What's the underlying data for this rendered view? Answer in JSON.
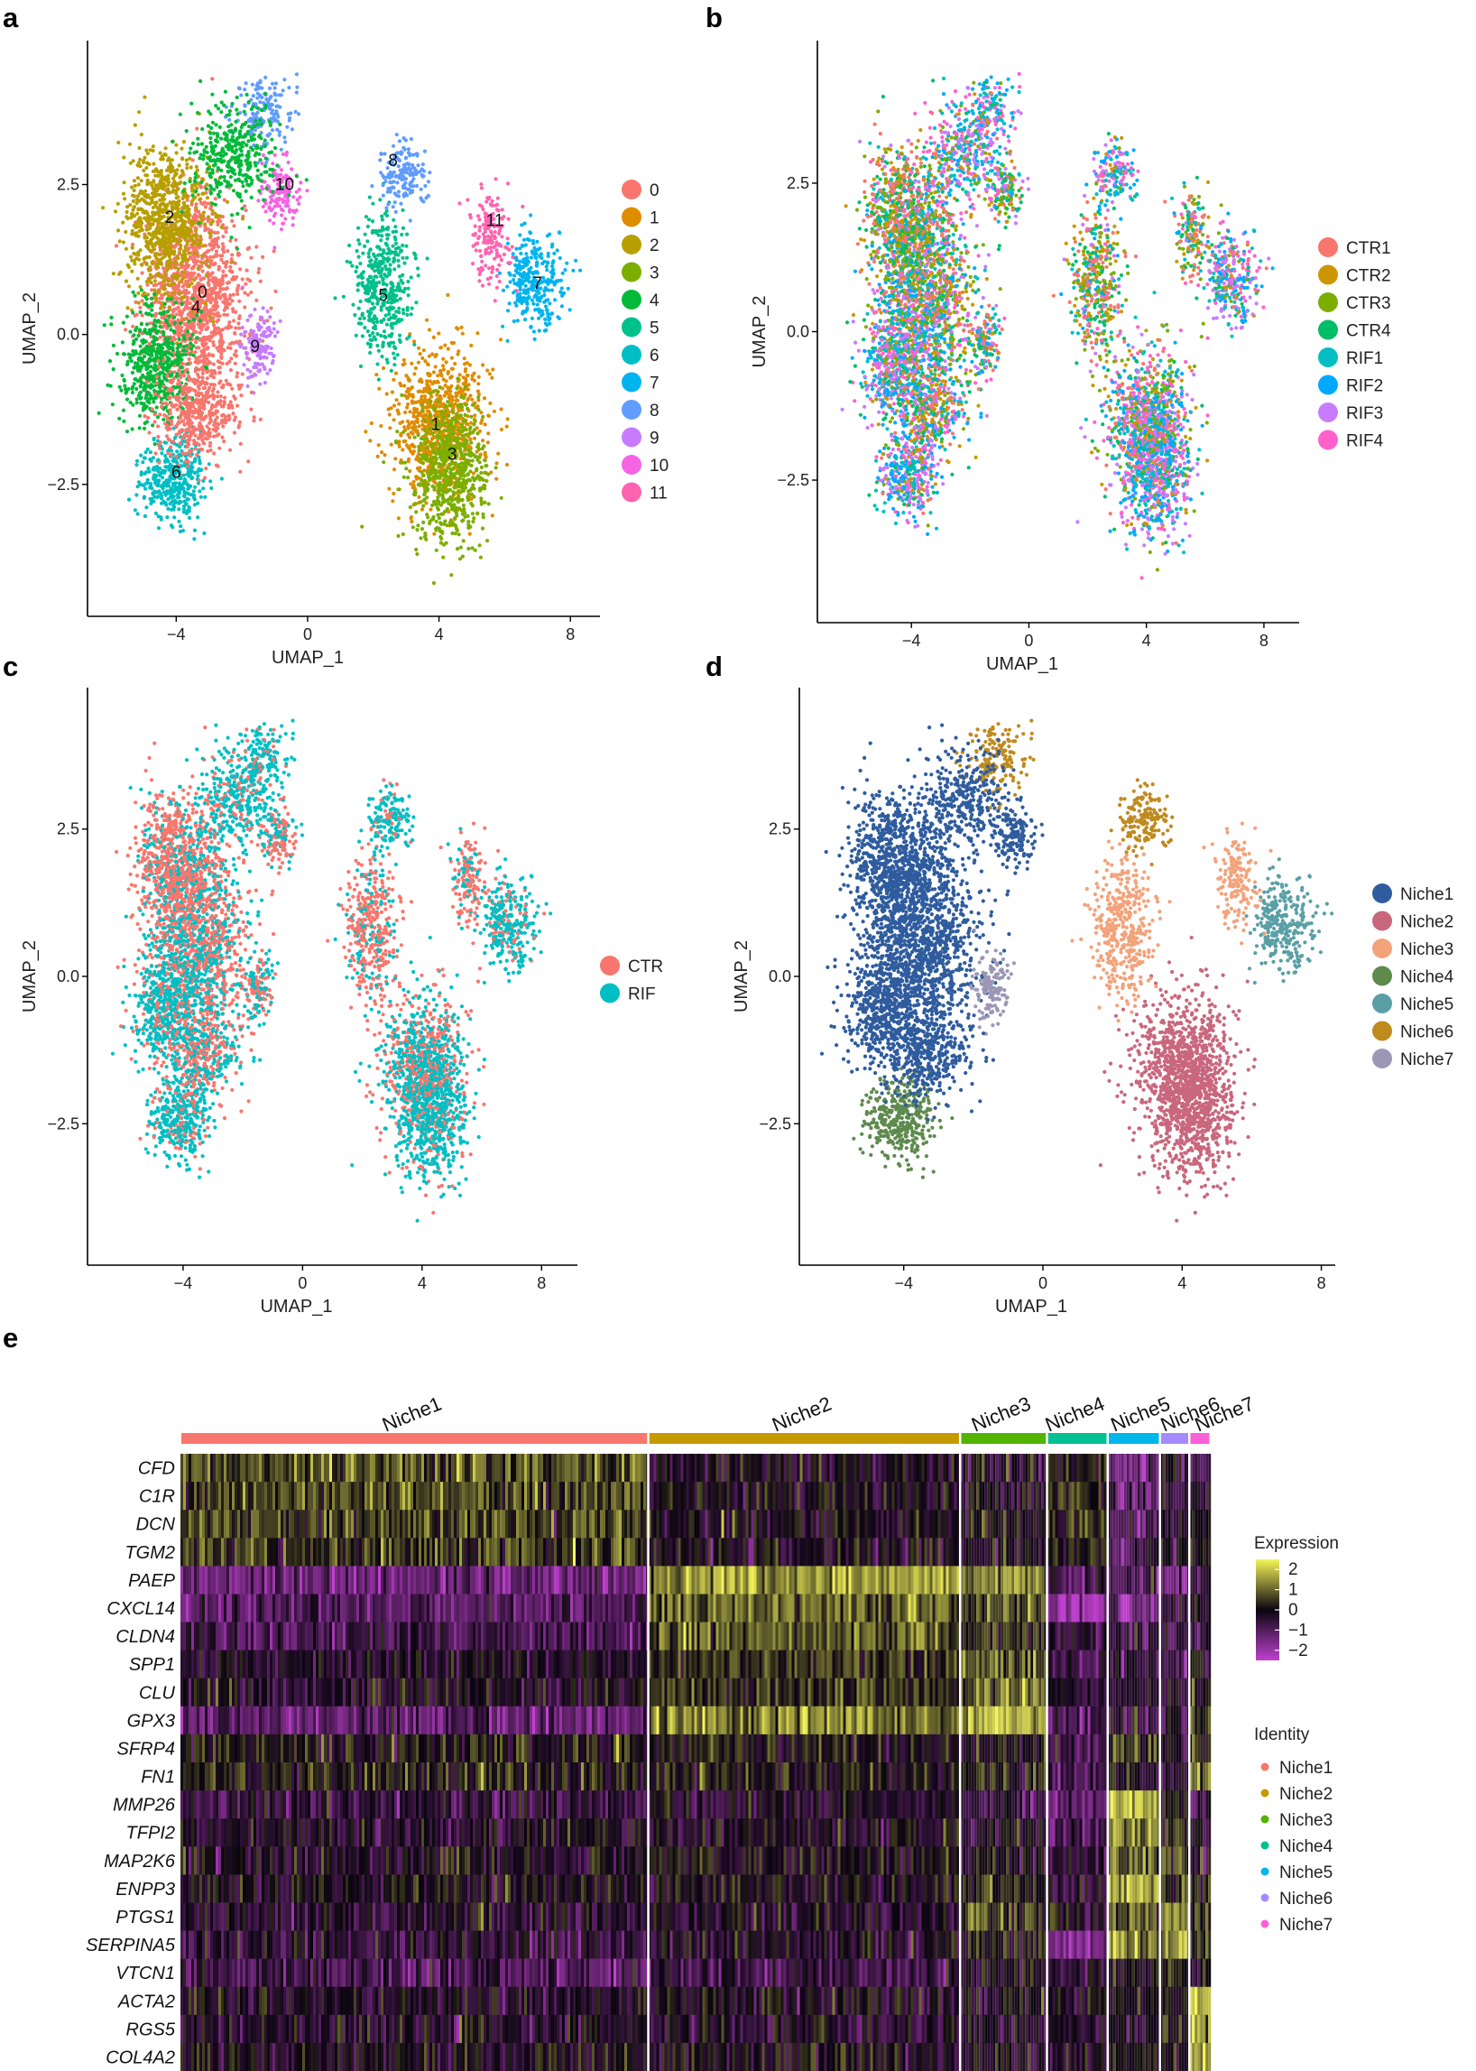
{
  "figure": {
    "panel_labels": [
      "a",
      "b",
      "c",
      "d",
      "e"
    ],
    "palettes": {
      "clusters": [
        "#F8766D",
        "#DE8C00",
        "#B79F00",
        "#7CAE00",
        "#00BA38",
        "#00C08B",
        "#00BFC4",
        "#00B4F0",
        "#619CFF",
        "#C77CFF",
        "#F564E3",
        "#FF64B0"
      ],
      "samples": [
        "#F8766D",
        "#CD9600",
        "#7CAE00",
        "#00BE67",
        "#00BFC4",
        "#00A9FF",
        "#C77CFF",
        "#FF61CC"
      ],
      "groups": [
        "#F8766D",
        "#00BFC4"
      ],
      "niches": [
        "#2F5C9E",
        "#C9677D",
        "#F3A27A",
        "#5E8A4E",
        "#5A9FA6",
        "#BF8A1E",
        "#9C97B6"
      ],
      "identity": [
        "#F8766D",
        "#C49A00",
        "#53B400",
        "#00C094",
        "#00B6EB",
        "#A58AFF",
        "#FB61D7"
      ]
    }
  },
  "chart_data": [
    {
      "type": "scatter",
      "panel": "a",
      "xlabel": "UMAP_1",
      "ylabel": "UMAP_2",
      "x_ticks": [
        -4,
        0,
        4,
        8
      ],
      "x_tick_labels": [
        "−4",
        "0",
        "4",
        "8"
      ],
      "y_ticks": [
        -2.5,
        0,
        2.5
      ],
      "y_tick_labels": [
        "−2.5",
        "0.0",
        "2.5"
      ],
      "xlim": [
        -6.7,
        8.9
      ],
      "ylim": [
        -4.7,
        4.9
      ],
      "legend": [
        "0",
        "1",
        "2",
        "3",
        "4",
        "5",
        "6",
        "7",
        "8",
        "9",
        "10",
        "11"
      ],
      "cluster_labels": [
        {
          "text": "0",
          "x": -3.2,
          "y": 0.7
        },
        {
          "text": "4",
          "x": -3.4,
          "y": 0.45
        },
        {
          "text": "2",
          "x": -4.2,
          "y": 1.95
        },
        {
          "text": "10",
          "x": -0.7,
          "y": 2.5
        },
        {
          "text": "8",
          "x": 2.6,
          "y": 2.9
        },
        {
          "text": "11",
          "x": 5.7,
          "y": 1.9
        },
        {
          "text": "7",
          "x": 7.0,
          "y": 0.85
        },
        {
          "text": "5",
          "x": 2.3,
          "y": 0.65
        },
        {
          "text": "9",
          "x": -1.6,
          "y": -0.2
        },
        {
          "text": "1",
          "x": 3.9,
          "y": -1.5
        },
        {
          "text": "3",
          "x": 4.4,
          "y": -2.0
        },
        {
          "text": "6",
          "x": -4.0,
          "y": -2.3
        }
      ]
    },
    {
      "type": "scatter",
      "panel": "b",
      "xlabel": "UMAP_1",
      "ylabel": "UMAP_2",
      "x_ticks": [
        -4,
        0,
        4,
        8
      ],
      "x_tick_labels": [
        "−4",
        "0",
        "4",
        "8"
      ],
      "y_ticks": [
        -2.5,
        0,
        2.5
      ],
      "y_tick_labels": [
        "−2.5",
        "0.0",
        "2.5"
      ],
      "xlim": [
        -7.2,
        9.2
      ],
      "ylim": [
        -4.9,
        4.9
      ],
      "legend": [
        "CTR1",
        "CTR2",
        "CTR3",
        "CTR4",
        "RIF1",
        "RIF2",
        "RIF3",
        "RIF4"
      ]
    },
    {
      "type": "scatter",
      "panel": "c",
      "xlabel": "UMAP_1",
      "ylabel": "UMAP_2",
      "x_ticks": [
        -4,
        0,
        4,
        8
      ],
      "x_tick_labels": [
        "−4",
        "0",
        "4",
        "8"
      ],
      "y_ticks": [
        -2.5,
        0,
        2.5
      ],
      "y_tick_labels": [
        "−2.5",
        "0.0",
        "2.5"
      ],
      "xlim": [
        -7.2,
        9.2
      ],
      "ylim": [
        -4.9,
        4.9
      ],
      "legend": [
        "CTR",
        "RIF"
      ]
    },
    {
      "type": "scatter",
      "panel": "d",
      "xlabel": "UMAP_1",
      "ylabel": "UMAP_2",
      "x_ticks": [
        -4,
        0,
        4,
        8
      ],
      "x_tick_labels": [
        "−4",
        "0",
        "4",
        "8"
      ],
      "y_ticks": [
        -2.5,
        0,
        2.5
      ],
      "y_tick_labels": [
        "−2.5",
        "0.0",
        "2.5"
      ],
      "xlim": [
        -7.0,
        8.4
      ],
      "ylim": [
        -4.9,
        4.9
      ],
      "legend": [
        "Niche1",
        "Niche2",
        "Niche3",
        "Niche4",
        "Niche5",
        "Niche6",
        "Niche7"
      ]
    },
    {
      "type": "heatmap",
      "panel": "e",
      "groups": [
        "Niche1",
        "Niche2",
        "Niche3",
        "Niche4",
        "Niche5",
        "Niche6",
        "Niche7"
      ],
      "group_fraction": [
        0.447,
        0.298,
        0.083,
        0.058,
        0.05,
        0.028,
        0.02
      ],
      "genes": [
        "CFD",
        "C1R",
        "DCN",
        "TGM2",
        "PAEP",
        "CXCL14",
        "CLDN4",
        "SPP1",
        "CLU",
        "GPX3",
        "SFRP4",
        "FN1",
        "MMP26",
        "TFPI2",
        "MAP2K6",
        "ENPP3",
        "PTGS1",
        "SERPINA5",
        "VTCN1",
        "ACTA2",
        "RGS5",
        "COL4A2"
      ],
      "mean_expression": [
        [
          0.8,
          -0.2,
          -0.3,
          0.2,
          -1.2,
          -0.3,
          -0.5
        ],
        [
          0.6,
          -0.2,
          -0.2,
          0.3,
          -1.0,
          -0.4,
          -0.6
        ],
        [
          0.6,
          -0.2,
          -0.1,
          0.4,
          -1.1,
          -0.5,
          0.2
        ],
        [
          0.5,
          -0.2,
          -0.1,
          0.2,
          -0.8,
          -0.4,
          0.1
        ],
        [
          -1.3,
          1.5,
          1.2,
          -0.8,
          -0.9,
          -1.0,
          -0.5
        ],
        [
          -1.0,
          1.0,
          0.8,
          -2.0,
          -1.8,
          -0.5,
          -0.5
        ],
        [
          -0.8,
          0.8,
          0.5,
          -0.5,
          -0.6,
          -0.5,
          -0.4
        ],
        [
          -0.3,
          0.5,
          0.9,
          -0.5,
          -0.6,
          -0.3,
          0.2
        ],
        [
          -0.2,
          0.4,
          1.0,
          -0.3,
          -0.5,
          -0.3,
          0.0
        ],
        [
          -1.2,
          1.2,
          1.8,
          -0.8,
          -0.6,
          -0.5,
          0.5
        ],
        [
          0.1,
          0.0,
          0.1,
          -0.8,
          0.3,
          -0.5,
          0.3
        ],
        [
          0.2,
          0.1,
          0.3,
          -0.5,
          0.0,
          -0.3,
          1.2
        ],
        [
          -0.6,
          -0.4,
          -0.5,
          -1.3,
          2.0,
          0.2,
          -0.5
        ],
        [
          -0.3,
          -0.2,
          -0.3,
          -0.8,
          1.5,
          0.5,
          -0.2
        ],
        [
          -0.2,
          -0.1,
          -0.2,
          -0.6,
          1.0,
          0.8,
          -0.3
        ],
        [
          -0.1,
          -0.1,
          0.3,
          -0.3,
          1.6,
          0.6,
          0.3
        ],
        [
          -0.4,
          -0.3,
          0.6,
          -0.2,
          0.9,
          1.2,
          0.1
        ],
        [
          -0.5,
          -0.3,
          0.0,
          -1.5,
          1.4,
          1.5,
          0.4
        ],
        [
          -0.9,
          -0.8,
          -0.2,
          -0.5,
          -0.3,
          0.3,
          -0.4
        ],
        [
          -0.3,
          -0.2,
          -0.2,
          -0.2,
          -0.1,
          0.2,
          2.0
        ],
        [
          -0.3,
          -0.3,
          -0.3,
          -0.3,
          -0.2,
          0.1,
          1.5
        ],
        [
          -0.1,
          -0.1,
          -0.1,
          -0.1,
          0.0,
          0.3,
          1.6
        ]
      ],
      "colorbar": {
        "title": "Expression",
        "ticks": [
          2,
          1,
          0,
          -1,
          -2
        ],
        "tick_labels": [
          "2",
          "1",
          "0",
          "−1",
          "−2"
        ],
        "range": [
          -2.5,
          2.5
        ]
      },
      "identity_title": "Identity"
    }
  ]
}
